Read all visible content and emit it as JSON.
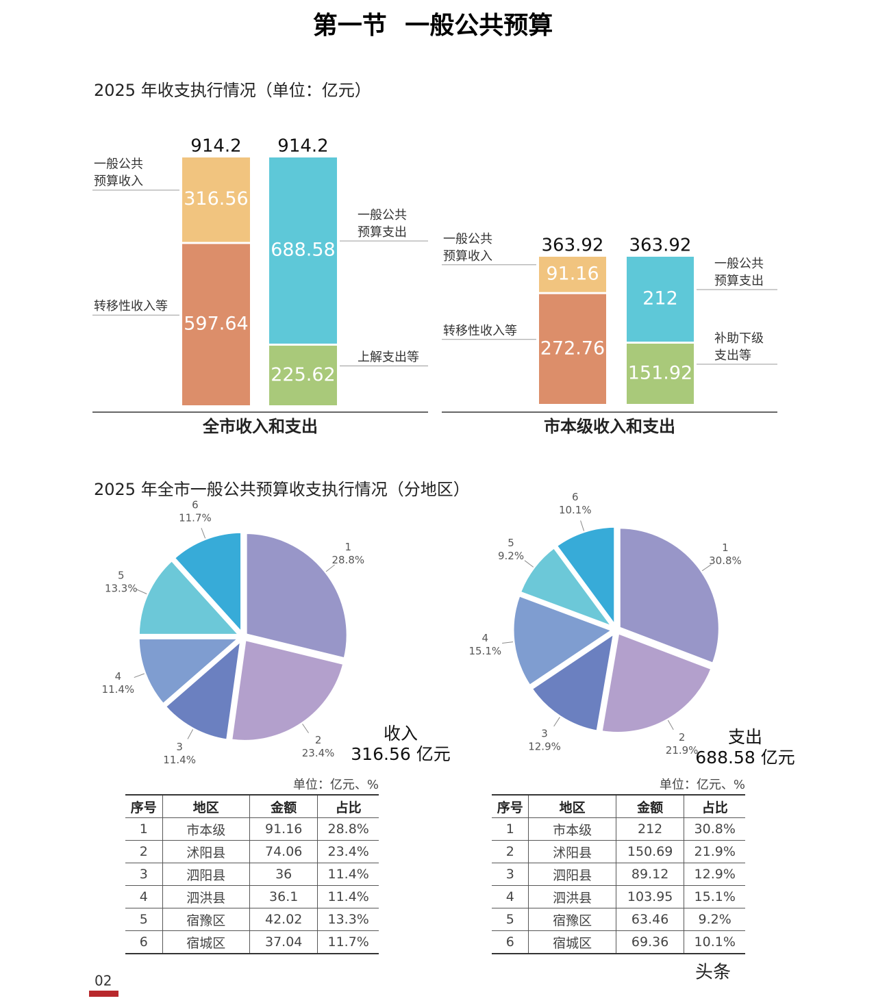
{
  "title": "第一节 一般公共预算",
  "sections": [
    "2025 年收支执行情况（单位：亿元）",
    "2025 年全市一般公共预算收支执行情况（分地区）"
  ],
  "chart_data": [
    {
      "type": "stacked_bar",
      "title": "全市收入和支出",
      "columns": [
        {
          "total": 914.2,
          "segments": [
            {
              "name": [
                "转移性收入等"
              ],
              "value": 597.64,
              "color": "#dc8e6a"
            },
            {
              "name": [
                "一般公共",
                "预算收入"
              ],
              "value": 316.56,
              "color": "#f1c47f"
            }
          ]
        },
        {
          "total": 914.2,
          "segments": [
            {
              "name": [
                "上解支出等"
              ],
              "value": 225.62,
              "color": "#a9c97a"
            },
            {
              "name": [
                "一般公共",
                "预算支出"
              ],
              "value": 688.58,
              "color": "#5ec8d8"
            }
          ]
        }
      ]
    },
    {
      "type": "stacked_bar",
      "title": "市本级收入和支出",
      "columns": [
        {
          "total": 363.92,
          "segments": [
            {
              "name": [
                "转移性收入等"
              ],
              "value": 272.76,
              "color": "#dc8e6a"
            },
            {
              "name": [
                "一般公共",
                "预算收入"
              ],
              "value": 91.16,
              "color": "#f1c47f"
            }
          ]
        },
        {
          "total": 363.92,
          "segments": [
            {
              "name": [
                "补助下级",
                "支出等"
              ],
              "value": 151.92,
              "color": "#a9c97a"
            },
            {
              "name": [
                "一般公共",
                "预算支出"
              ],
              "value": 212,
              "color": "#5ec8d8"
            }
          ]
        }
      ]
    },
    {
      "type": "pie",
      "categories": [
        "1",
        "2",
        "3",
        "4",
        "5",
        "6"
      ],
      "values": [
        28.8,
        23.4,
        11.4,
        11.4,
        13.3,
        11.7
      ],
      "value_labels": [
        "28.8%",
        "23.4%",
        "11.4%",
        "11.4%",
        "13.3%",
        "11.7%"
      ],
      "colors": [
        "#9896c8",
        "#b3a0cc",
        "#6b80c0",
        "#7f9dd0",
        "#6cc8d8",
        "#37abd8"
      ],
      "caption": [
        "收入",
        "316.56 亿元"
      ]
    },
    {
      "type": "pie",
      "categories": [
        "1",
        "2",
        "3",
        "4",
        "5",
        "6"
      ],
      "values": [
        30.8,
        21.9,
        12.9,
        15.1,
        9.2,
        10.1
      ],
      "value_labels": [
        "30.8%",
        "21.9%",
        "12.9%",
        "15.1%",
        "9.2%",
        "10.1%"
      ],
      "colors": [
        "#9896c8",
        "#b3a0cc",
        "#6b80c0",
        "#7f9dd0",
        "#6cc8d8",
        "#37abd8"
      ],
      "caption": [
        "支出",
        "688.58 亿元"
      ]
    }
  ],
  "tables": [
    {
      "unit": "单位：亿元、%",
      "header": [
        "序号",
        "地区",
        "金额",
        "占比"
      ],
      "rows": [
        [
          "1",
          "市本级",
          "91.16",
          "28.8%"
        ],
        [
          "2",
          "沭阳县",
          "74.06",
          "23.4%"
        ],
        [
          "3",
          "泗阳县",
          "36",
          "11.4%"
        ],
        [
          "4",
          "泗洪县",
          "36.1",
          "11.4%"
        ],
        [
          "5",
          "宿豫区",
          "42.02",
          "13.3%"
        ],
        [
          "6",
          "宿城区",
          "37.04",
          "11.7%"
        ]
      ]
    },
    {
      "unit": "单位：亿元、%",
      "header": [
        "序号",
        "地区",
        "金额",
        "占比"
      ],
      "rows": [
        [
          "1",
          "市本级",
          "212",
          "30.8%"
        ],
        [
          "2",
          "沭阳县",
          "150.69",
          "21.9%"
        ],
        [
          "3",
          "泗阳县",
          "89.12",
          "12.9%"
        ],
        [
          "4",
          "泗洪县",
          "103.95",
          "15.1%"
        ],
        [
          "5",
          "宿豫区",
          "63.46",
          "9.2%"
        ],
        [
          "6",
          "宿城区",
          "69.36",
          "10.1%"
        ]
      ]
    }
  ],
  "page_number": "02",
  "watermark": "头条"
}
